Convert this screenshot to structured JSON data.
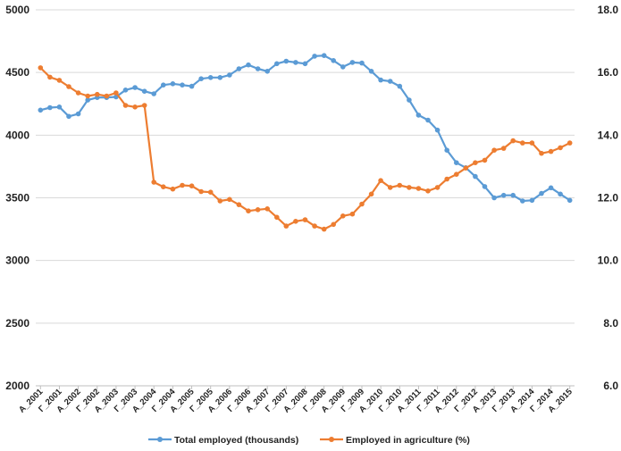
{
  "chart_data": {
    "type": "line",
    "title": "",
    "xlabel": "",
    "ylabel": "",
    "y_left_ticks": [
      "2000",
      "2500",
      "3000",
      "3500",
      "4000",
      "4500",
      "5000"
    ],
    "y_right_ticks": [
      "6.0",
      "8.0",
      "10.0",
      "12.0",
      "14.0",
      "16.0",
      "18.0"
    ],
    "ylim_left": [
      2000,
      5000
    ],
    "ylim_right": [
      6.0,
      18.0
    ],
    "grid": true,
    "legend_position": "bottom",
    "x_tick_labels": [
      "A_2001",
      "Γ_2001",
      "A_2002",
      "Γ_2002",
      "A_2003",
      "Γ_2003",
      "A_2004",
      "Γ_2004",
      "A_2005",
      "Γ_2005",
      "A_2006",
      "Γ_2006",
      "A_2007",
      "Γ_2007",
      "A_2008",
      "Γ_2008",
      "A_2009",
      "Γ_2009",
      "A_2010",
      "Γ_2010",
      "A_2011",
      "Γ_2011",
      "A_2012",
      "Γ_2012",
      "A_2013",
      "Γ_2013",
      "A_2014",
      "Γ_2014",
      "A_2015"
    ],
    "x_count": 57,
    "series": [
      {
        "name": "Total employed (thousands)",
        "axis": "left",
        "color": "#5B9BD5",
        "values": [
          4200,
          4220,
          4225,
          4150,
          4170,
          4280,
          4300,
          4300,
          4305,
          4360,
          4380,
          4350,
          4330,
          4400,
          4410,
          4400,
          4390,
          4450,
          4460,
          4460,
          4480,
          4530,
          4560,
          4530,
          4510,
          4570,
          4590,
          4580,
          4570,
          4630,
          4635,
          4595,
          4545,
          4580,
          4575,
          4510,
          4440,
          4430,
          4390,
          4280,
          4160,
          4120,
          4040,
          3880,
          3780,
          3740,
          3670,
          3590,
          3500,
          3520,
          3520,
          3475,
          3480,
          3535,
          3580,
          3530,
          3480
        ]
      },
      {
        "name": "Employed in agriculture (%)",
        "axis": "right",
        "color": "#ED7D31",
        "values": [
          16.15,
          15.85,
          15.75,
          15.55,
          15.35,
          15.25,
          15.3,
          15.25,
          15.35,
          14.95,
          14.9,
          14.95,
          12.5,
          12.35,
          12.28,
          12.4,
          12.38,
          12.2,
          12.18,
          11.9,
          11.95,
          11.78,
          11.58,
          11.62,
          11.65,
          11.38,
          11.1,
          11.25,
          11.3,
          11.1,
          11.0,
          11.15,
          11.42,
          11.48,
          11.8,
          12.12,
          12.55,
          12.33,
          12.4,
          12.33,
          12.3,
          12.22,
          12.33,
          12.6,
          12.75,
          12.95,
          13.12,
          13.2,
          13.52,
          13.58,
          13.82,
          13.75,
          13.75,
          13.42,
          13.48,
          13.6,
          13.75
        ]
      }
    ]
  }
}
